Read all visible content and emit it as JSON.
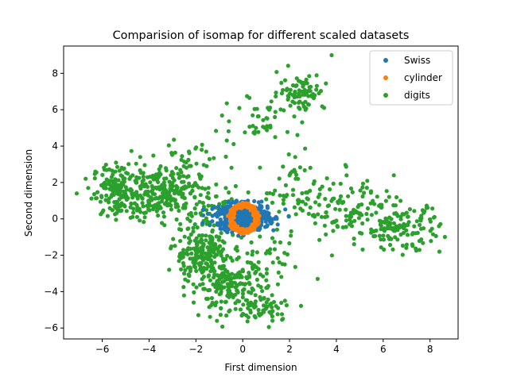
{
  "chart_data": {
    "type": "scatter",
    "title": "Comparision of isomap for different scaled datasets",
    "xlabel": "First dimension",
    "ylabel": "Second dimension",
    "xlim": [
      -7.65,
      9.2
    ],
    "ylim": [
      -6.6,
      9.5
    ],
    "xticks": [
      -6,
      -4,
      -2,
      0,
      2,
      4,
      6,
      8
    ],
    "yticks": [
      -6,
      -4,
      -2,
      0,
      2,
      4,
      6,
      8
    ],
    "grid": false,
    "legend": "top-right",
    "series": [
      {
        "name": "digits",
        "color": "#2ca02c",
        "clusters": [
          {
            "cx": -5.3,
            "cy": 1.5,
            "sx": 0.55,
            "sy": 0.75,
            "n": 160,
            "rot": 0
          },
          {
            "cx": -3.4,
            "cy": 1.5,
            "sx": 0.8,
            "sy": 0.7,
            "n": 240,
            "rot": 0
          },
          {
            "cx": -1.8,
            "cy": -1.8,
            "sx": 0.6,
            "sy": 0.8,
            "n": 190,
            "rot": 0
          },
          {
            "cx": -0.6,
            "cy": -3.6,
            "sx": 0.8,
            "sy": 0.7,
            "n": 190,
            "rot": 0
          },
          {
            "cx": 0.8,
            "cy": -4.9,
            "sx": 0.8,
            "sy": 0.4,
            "n": 70,
            "rot": 0
          },
          {
            "cx": 2.5,
            "cy": 7.0,
            "sx": 0.5,
            "sy": 0.5,
            "n": 80,
            "rot": 0
          },
          {
            "cx": 0.8,
            "cy": 5.5,
            "sx": 0.9,
            "sy": 0.8,
            "n": 45,
            "rot": 0
          },
          {
            "cx": 2.4,
            "cy": 1.4,
            "sx": 0.8,
            "sy": 0.9,
            "n": 60,
            "rot": 0
          },
          {
            "cx": 4.6,
            "cy": 0.5,
            "sx": 1.0,
            "sy": 0.9,
            "n": 110,
            "rot": 0
          },
          {
            "cx": 6.8,
            "cy": -0.5,
            "sx": 0.8,
            "sy": 0.6,
            "n": 130,
            "rot": 0
          },
          {
            "cx": 1.2,
            "cy": -2.0,
            "sx": 0.8,
            "sy": 0.8,
            "n": 35,
            "rot": 0
          },
          {
            "cx": -1.2,
            "cy": 0.5,
            "sx": 0.6,
            "sy": 0.7,
            "n": 40,
            "rot": 0
          },
          {
            "cx": -2.2,
            "cy": 3.3,
            "sx": 0.7,
            "sy": 0.6,
            "n": 30,
            "rot": 0
          }
        ],
        "points": [
          [
            3.8,
            9.0
          ],
          [
            8.4,
            -1.8
          ],
          [
            -6.6,
            1.7
          ],
          [
            3.2,
            -3.3
          ],
          [
            -0.3,
            1.8
          ]
        ]
      },
      {
        "name": "Swiss",
        "color": "#1f77b4",
        "clusters": [
          {
            "cx": 0.0,
            "cy": 0.1,
            "sx": 0.55,
            "sy": 0.35,
            "n": 700,
            "rot": 0
          }
        ],
        "points": []
      },
      {
        "name": "cylinder",
        "color": "#ff7f0e",
        "rings": [
          {
            "cx": 0.05,
            "cy": 0.05,
            "rx": 0.55,
            "ry": 0.72,
            "n": 400
          }
        ],
        "points": []
      }
    ],
    "legend_order": [
      "Swiss",
      "cylinder",
      "digits"
    ]
  }
}
